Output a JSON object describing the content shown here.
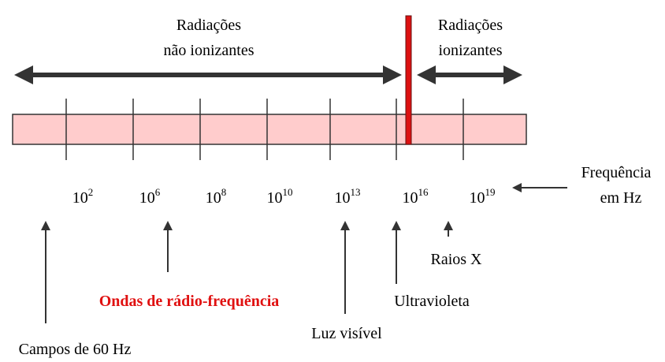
{
  "header": {
    "non_ionizing": [
      "Radiações",
      "não ionizantes"
    ],
    "ionizing": [
      "Radiações",
      "ionizantes"
    ]
  },
  "frequencies": [
    {
      "base": "10",
      "exponent": "2"
    },
    {
      "base": "10",
      "exponent": "6"
    },
    {
      "base": "10",
      "exponent": "8"
    },
    {
      "base": "10",
      "exponent": "10"
    },
    {
      "base": "10",
      "exponent": "13"
    },
    {
      "base": "10",
      "exponent": "16"
    },
    {
      "base": "10",
      "exponent": "19"
    }
  ],
  "axis_label": [
    "Frequência",
    "em Hz"
  ],
  "sources": {
    "fields": "Campos de 60 Hz",
    "radio": "Ondas de rádio-frequência",
    "visible": "Luz visível",
    "ultraviolet": "Ultravioleta",
    "xray": "Raios X"
  }
}
